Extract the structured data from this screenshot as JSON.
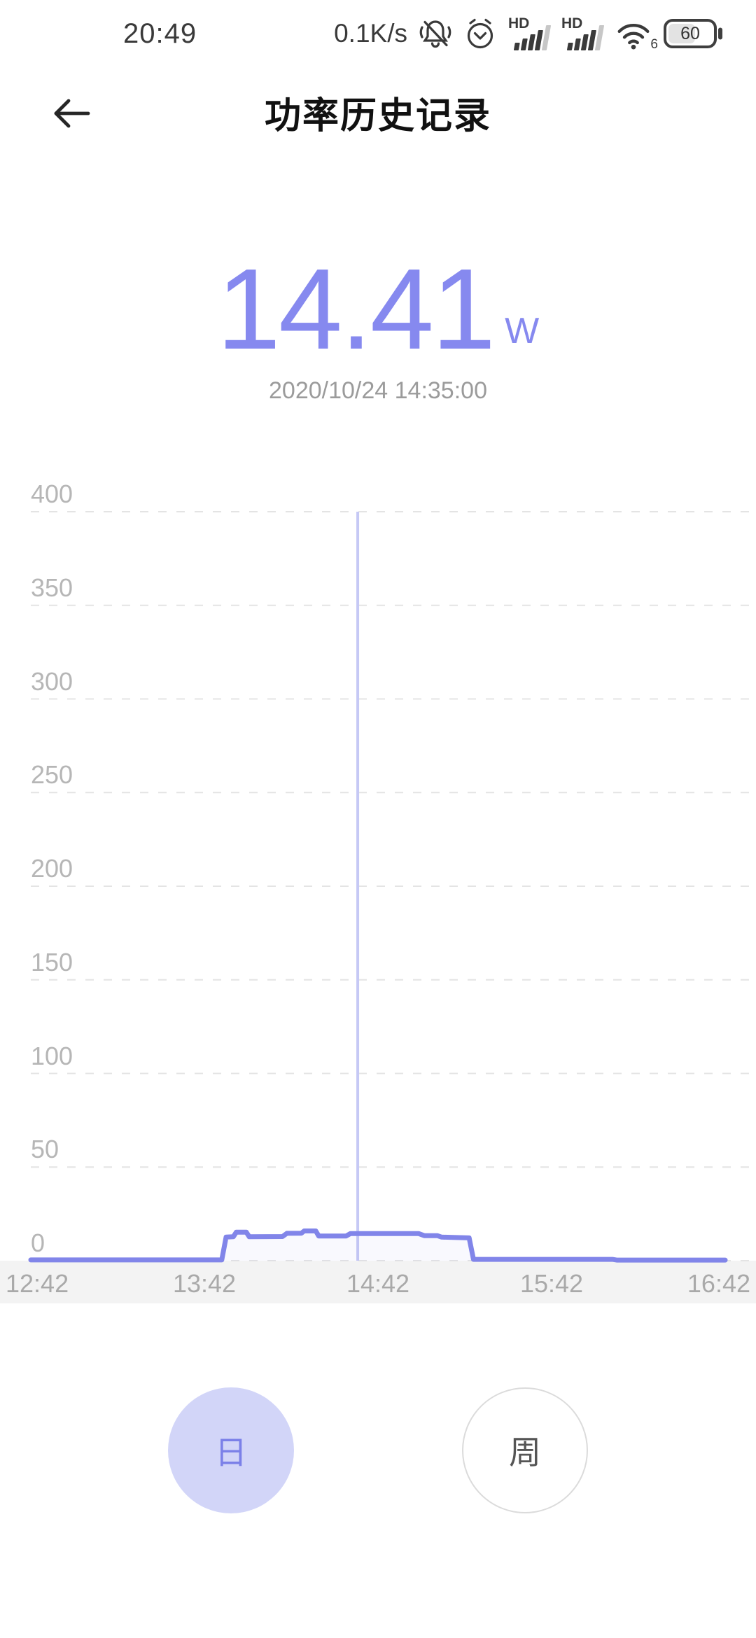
{
  "status_bar": {
    "time": "20:49",
    "net_speed": "0.1K/s",
    "sim_hd_label": "HD",
    "wifi_standard": "6",
    "battery_percent": "60",
    "icons": [
      "muted-bell-icon",
      "alarm-clock-icon",
      "sim1-signal-icon",
      "sim2-signal-icon",
      "wifi-icon",
      "battery-icon"
    ]
  },
  "header": {
    "title": "功率历史记录",
    "back_icon": "arrow-left-icon"
  },
  "reading": {
    "value": "14.41",
    "unit": "W",
    "timestamp": "2020/10/24 14:35:00"
  },
  "chart_data": {
    "type": "line",
    "title": "",
    "xlabel": "time",
    "ylabel": "power (W)",
    "ylim": [
      0,
      400
    ],
    "xlim_minutes": [
      0,
      240
    ],
    "y_ticks": [
      400,
      350,
      300,
      250,
      200,
      150,
      100,
      50,
      0
    ],
    "x_tick_labels": [
      "12:42",
      "13:42",
      "14:42",
      "15:42",
      "16:42"
    ],
    "grid": "horizontal-dashed",
    "legend": "none",
    "line_color": "#8185e9",
    "area_fill": "rgba(129,133,233,0.05)",
    "cursor_color": "#c6c9f5",
    "grid_color": "#e4e4e4",
    "cursor": {
      "t_minutes": 113,
      "time": "14:35:00",
      "value_w": 14.41
    },
    "series": [
      {
        "name": "power_w",
        "points": [
          [
            0,
            0.4
          ],
          [
            66,
            0.4
          ],
          [
            67.5,
            12.6
          ],
          [
            70,
            12.8
          ],
          [
            71,
            15.2
          ],
          [
            74.5,
            15.2
          ],
          [
            75.5,
            12.8
          ],
          [
            87,
            12.9
          ],
          [
            88.5,
            14.6
          ],
          [
            93.5,
            14.7
          ],
          [
            94.5,
            15.9
          ],
          [
            98.5,
            15.9
          ],
          [
            99.5,
            13.2
          ],
          [
            109,
            13.2
          ],
          [
            110.5,
            14.5
          ],
          [
            134,
            14.5
          ],
          [
            136,
            13.4
          ],
          [
            140.5,
            13.4
          ],
          [
            142,
            12.6
          ],
          [
            146,
            12.4
          ],
          [
            151.5,
            12.2
          ],
          [
            153,
            0.7
          ],
          [
            201,
            0.7
          ],
          [
            202.5,
            0.35
          ],
          [
            240,
            0.35
          ]
        ]
      }
    ]
  },
  "controls": {
    "day_label": "日",
    "week_label": "周",
    "selected": "day"
  },
  "colors": {
    "accent": "#8689ef",
    "line": "#8185e9",
    "selected_circle_bg": "#d2d5f8",
    "axis_label": "#b6b6b6",
    "band_bg": "#f3f3f3"
  }
}
